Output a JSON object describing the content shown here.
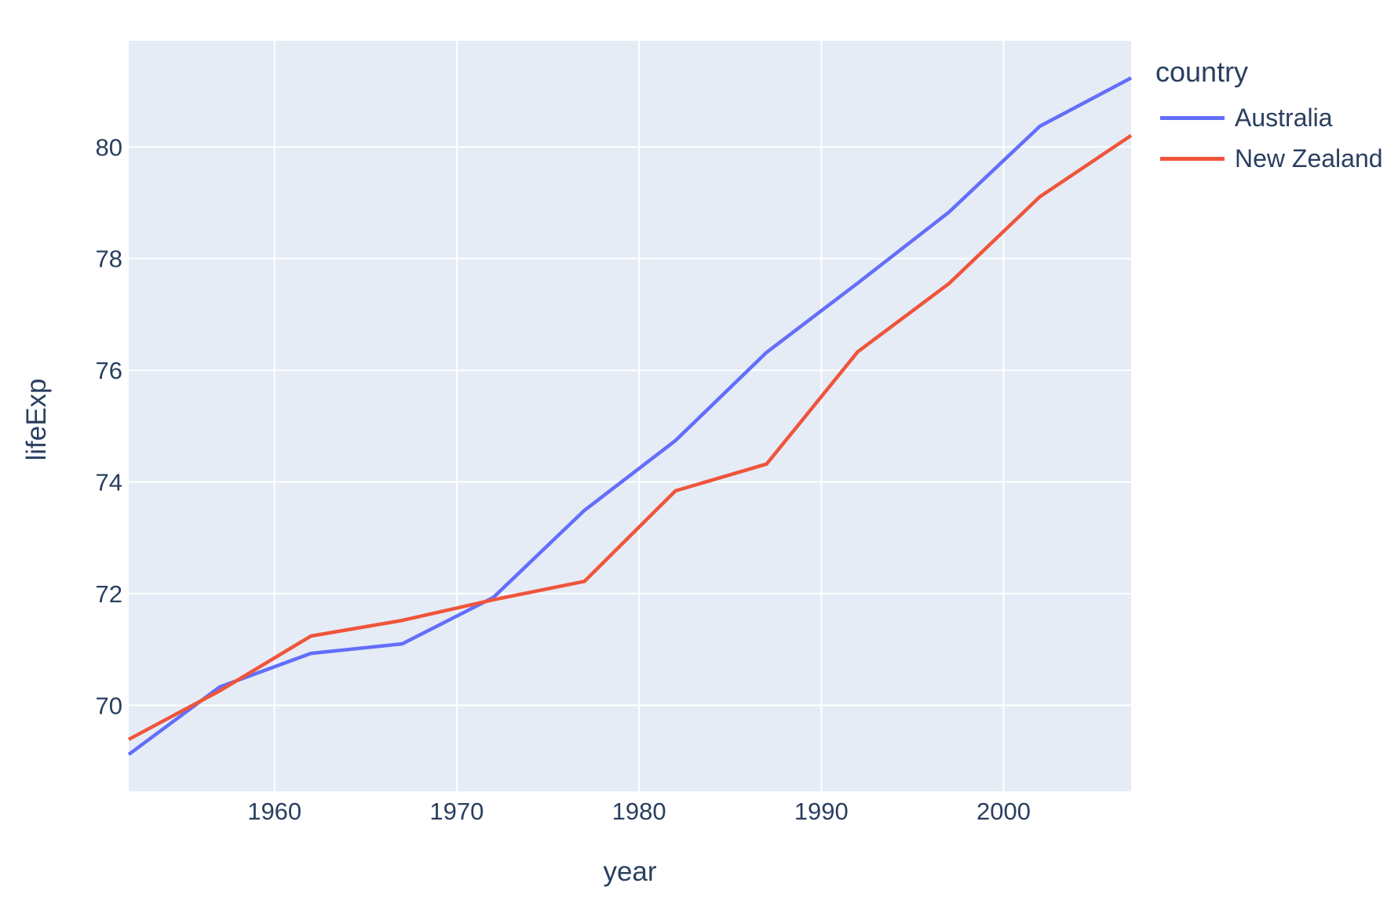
{
  "chart_data": {
    "type": "line",
    "title": "",
    "xlabel": "year",
    "ylabel": "lifeExp",
    "legend_title": "country",
    "legend_position": "right-top",
    "grid": true,
    "x": [
      1952,
      1957,
      1962,
      1967,
      1972,
      1977,
      1982,
      1987,
      1992,
      1997,
      2002,
      2007
    ],
    "series": [
      {
        "name": "Australia",
        "color": "#636EFA",
        "values": [
          69.12,
          70.33,
          70.93,
          71.1,
          71.93,
          73.49,
          74.74,
          76.32,
          77.56,
          78.83,
          80.37,
          81.235
        ]
      },
      {
        "name": "New Zealand",
        "color": "#EF553B",
        "values": [
          69.39,
          70.26,
          71.24,
          71.52,
          71.89,
          72.22,
          73.84,
          74.32,
          76.33,
          77.55,
          79.11,
          80.204
        ]
      }
    ],
    "xlim": [
      1952,
      2007
    ],
    "ylim": [
      68.46,
      81.9
    ],
    "xticks": [
      1960,
      1970,
      1980,
      1990,
      2000
    ],
    "yticks": [
      70,
      72,
      74,
      76,
      78,
      80
    ],
    "colors": {
      "plot_background": "#e5ecf6",
      "grid": "#ffffff",
      "text": "#2a3f5f",
      "paper_background": "#ffffff"
    }
  }
}
